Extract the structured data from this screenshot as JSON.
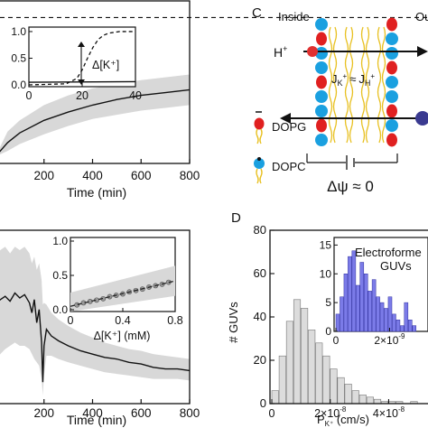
{
  "panel_c": {
    "letter": "C",
    "inside_label": "Inside",
    "outside_label": "Ou",
    "h_label": "H",
    "h_sup": "+",
    "j_k": "J",
    "j_k_sub": "K",
    "j_k_sup": "+",
    "j_approx": "≈",
    "j_h": "J",
    "j_h_sub": "H",
    "j_h_sup": "+",
    "dopg_label": "DOPG",
    "dopc_label": "DOPC",
    "potential": "Δψ ≈ 0",
    "colors": {
      "dopg_head": "#e02020",
      "dopc_head": "#1aa0e0",
      "tails": "#e8c020",
      "ion_left": "#e03030",
      "ion_right": "#3a3a90"
    }
  },
  "panel_d": {
    "letter": "D"
  },
  "chart_data": [
    {
      "id": "top-left-main",
      "type": "line",
      "xlabel": "Time (min)",
      "x_ticks": [
        "200",
        "400",
        "600",
        "800"
      ],
      "xlim": [
        0,
        800
      ],
      "dashed_level": 1.0,
      "series": [
        {
          "x": [
            0,
            50,
            100,
            200,
            300,
            400,
            500,
            600,
            700,
            800
          ],
          "y": [
            0.0,
            0.1,
            0.17,
            0.26,
            0.32,
            0.37,
            0.41,
            0.44,
            0.46,
            0.48
          ],
          "band_low": [
            0.0,
            0.04,
            0.09,
            0.16,
            0.22,
            0.27,
            0.3,
            0.33,
            0.35,
            0.37
          ],
          "band_high": [
            0.0,
            0.18,
            0.26,
            0.37,
            0.44,
            0.49,
            0.52,
            0.55,
            0.57,
            0.59
          ]
        }
      ],
      "inset": {
        "type": "line",
        "y_ticks": [
          "0.0",
          "0.5",
          "1.0"
        ],
        "x_ticks": [
          "0",
          "20",
          "40"
        ],
        "ylabel": "Δ[K⁺]",
        "xlim": [
          0,
          40
        ],
        "ylim": [
          0,
          1.05
        ],
        "dashed_series": {
          "x": [
            0,
            14,
            18,
            20,
            22,
            24,
            26,
            28,
            30,
            34,
            40
          ],
          "y": [
            0.0,
            0.02,
            0.12,
            0.28,
            0.5,
            0.7,
            0.85,
            0.93,
            0.97,
            1.0,
            1.0
          ]
        },
        "solid_series": {
          "x": [
            0,
            40
          ],
          "y": [
            0.05,
            0.06
          ]
        }
      }
    },
    {
      "id": "bottom-left-main",
      "type": "line",
      "xlabel": "Time (min)",
      "x_ticks": [
        "200",
        "400",
        "600",
        "800"
      ],
      "xlim": [
        0,
        800
      ],
      "series": [
        {
          "x": [
            0,
            20,
            40,
            60,
            80,
            100,
            120,
            140,
            150,
            160,
            170,
            180,
            190,
            195,
            200,
            210,
            230,
            260,
            300,
            350,
            400,
            450,
            500,
            550,
            600,
            650,
            700,
            750,
            800
          ],
          "y": [
            0.55,
            0.58,
            0.6,
            0.57,
            0.62,
            0.59,
            0.61,
            0.56,
            0.5,
            0.58,
            0.44,
            0.52,
            0.32,
            0.08,
            0.3,
            0.4,
            0.36,
            0.33,
            0.3,
            0.27,
            0.25,
            0.23,
            0.22,
            0.2,
            0.19,
            0.17,
            0.16,
            0.16,
            0.15
          ],
          "band_low": [
            0.2,
            0.25,
            0.28,
            0.3,
            0.32,
            0.3,
            0.3,
            0.28,
            0.25,
            0.22,
            0.2,
            0.18,
            0.1,
            0.0,
            0.12,
            0.24,
            0.24,
            0.22,
            0.2,
            0.18,
            0.16,
            0.14,
            0.13,
            0.12,
            0.11,
            0.1,
            0.1,
            0.1,
            0.09
          ],
          "band_high": [
            0.85,
            0.88,
            0.9,
            0.86,
            0.9,
            0.88,
            0.9,
            0.86,
            0.8,
            0.84,
            0.76,
            0.8,
            0.7,
            0.55,
            0.56,
            0.55,
            0.5,
            0.46,
            0.42,
            0.38,
            0.35,
            0.32,
            0.3,
            0.28,
            0.27,
            0.25,
            0.24,
            0.23,
            0.22
          ]
        }
      ],
      "inset": {
        "type": "line",
        "y_ticks": [
          "0.0",
          "0.5",
          "1.0"
        ],
        "x_ticks": [
          "0",
          "0.4",
          "0.8"
        ],
        "xlabel": "Δ[K⁺] (mM)",
        "xlim": [
          0,
          0.8
        ],
        "ylim": [
          0,
          1.0
        ],
        "line": {
          "x": [
            0,
            0.8
          ],
          "y": [
            0.05,
            0.42
          ]
        },
        "band_low": [
          -0.15,
          0.2
        ],
        "band_high": [
          0.25,
          0.64
        ],
        "points": {
          "x": [
            0.05,
            0.1,
            0.15,
            0.2,
            0.25,
            0.3,
            0.35,
            0.4,
            0.45,
            0.5,
            0.55,
            0.6,
            0.65,
            0.7,
            0.75
          ],
          "y": [
            0.07,
            0.1,
            0.12,
            0.14,
            0.16,
            0.19,
            0.21,
            0.23,
            0.26,
            0.28,
            0.3,
            0.33,
            0.35,
            0.37,
            0.4
          ]
        }
      }
    },
    {
      "id": "panel-d-histogram",
      "type": "bar",
      "ylabel": "# GUVs",
      "xlabel": "P",
      "xlabel_sub": "K⁺",
      "xlabel_unit": " (cm/s)",
      "y_ticks": [
        "0",
        "20",
        "40",
        "60",
        "80"
      ],
      "x_ticks": [
        {
          "base": "0",
          "exp": ""
        },
        {
          "base": "2×10",
          "exp": "-8"
        },
        {
          "base": "4×10",
          "exp": "-8"
        }
      ],
      "xlim": [
        0,
        5.5e-08
      ],
      "ylim": [
        0,
        80
      ],
      "bin_width": 2.5e-09,
      "bin_starts": [
        0,
        2.5e-09,
        5e-09,
        7.5e-09,
        1e-08,
        1.25e-08,
        1.5e-08,
        1.75e-08,
        2e-08,
        2.25e-08,
        2.5e-08,
        2.75e-08,
        3e-08,
        3.25e-08,
        3.5e-08,
        3.75e-08,
        4e-08,
        4.25e-08,
        4.5e-08,
        4.75e-08
      ],
      "values": [
        6,
        22,
        38,
        48,
        44,
        34,
        28,
        22,
        16,
        12,
        9,
        6,
        4,
        3,
        2,
        1,
        1,
        1,
        0,
        1
      ],
      "colors": {
        "bars": "#dcdcdc"
      },
      "inset": {
        "type": "bar",
        "title_line1": "Electroforme",
        "title_line2": "GUVs",
        "y_ticks": [
          "0",
          "5",
          "10",
          "15"
        ],
        "x_ticks": [
          {
            "base": "0",
            "exp": ""
          },
          {
            "base": "2×10",
            "exp": "-9"
          }
        ],
        "xlim": [
          0,
          3.5e-09
        ],
        "ylim": [
          0,
          16
        ],
        "bin_width": 1.5e-10,
        "values": [
          3,
          6,
          10,
          13,
          14,
          8,
          12,
          10,
          7,
          9,
          6,
          5,
          4,
          6,
          3,
          2,
          1,
          5,
          2,
          1,
          0
        ],
        "colors": {
          "bars": "#7b7be8"
        }
      }
    }
  ]
}
